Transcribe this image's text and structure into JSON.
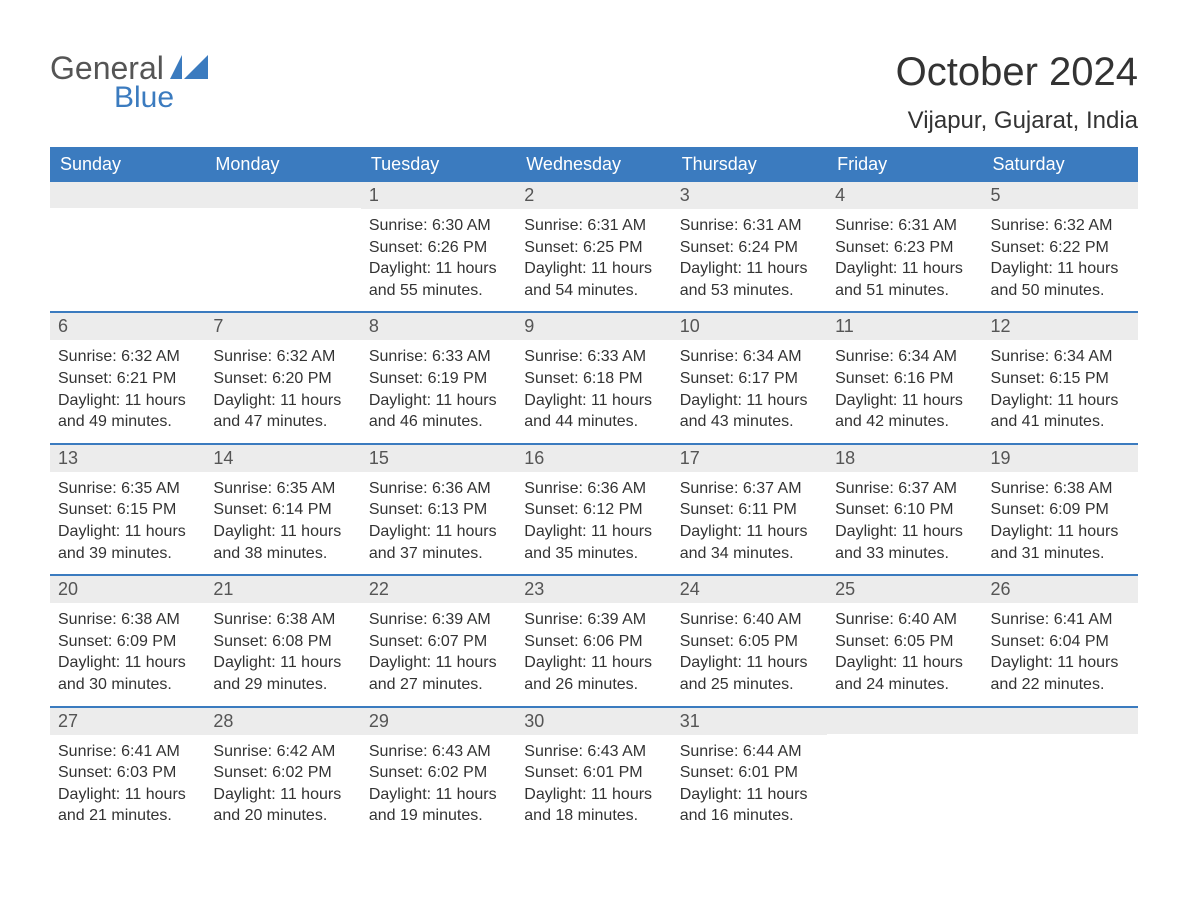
{
  "logo": {
    "text_general": "General",
    "text_blue": "Blue",
    "flag_color": "#3b7bbf"
  },
  "title": "October 2024",
  "location": "Vijapur, Gujarat, India",
  "colors": {
    "header_bg": "#3b7bbf",
    "daynum_bg": "#ececec",
    "text": "#333333",
    "page_bg": "#ffffff"
  },
  "weekdays": [
    "Sunday",
    "Monday",
    "Tuesday",
    "Wednesday",
    "Thursday",
    "Friday",
    "Saturday"
  ],
  "labels": {
    "sunrise": "Sunrise:",
    "sunset": "Sunset:",
    "daylight": "Daylight:"
  },
  "weeks": [
    [
      {
        "day": "",
        "sunrise": "",
        "sunset": "",
        "daylight": ""
      },
      {
        "day": "",
        "sunrise": "",
        "sunset": "",
        "daylight": ""
      },
      {
        "day": "1",
        "sunrise": "6:30 AM",
        "sunset": "6:26 PM",
        "daylight": "11 hours and 55 minutes."
      },
      {
        "day": "2",
        "sunrise": "6:31 AM",
        "sunset": "6:25 PM",
        "daylight": "11 hours and 54 minutes."
      },
      {
        "day": "3",
        "sunrise": "6:31 AM",
        "sunset": "6:24 PM",
        "daylight": "11 hours and 53 minutes."
      },
      {
        "day": "4",
        "sunrise": "6:31 AM",
        "sunset": "6:23 PM",
        "daylight": "11 hours and 51 minutes."
      },
      {
        "day": "5",
        "sunrise": "6:32 AM",
        "sunset": "6:22 PM",
        "daylight": "11 hours and 50 minutes."
      }
    ],
    [
      {
        "day": "6",
        "sunrise": "6:32 AM",
        "sunset": "6:21 PM",
        "daylight": "11 hours and 49 minutes."
      },
      {
        "day": "7",
        "sunrise": "6:32 AM",
        "sunset": "6:20 PM",
        "daylight": "11 hours and 47 minutes."
      },
      {
        "day": "8",
        "sunrise": "6:33 AM",
        "sunset": "6:19 PM",
        "daylight": "11 hours and 46 minutes."
      },
      {
        "day": "9",
        "sunrise": "6:33 AM",
        "sunset": "6:18 PM",
        "daylight": "11 hours and 44 minutes."
      },
      {
        "day": "10",
        "sunrise": "6:34 AM",
        "sunset": "6:17 PM",
        "daylight": "11 hours and 43 minutes."
      },
      {
        "day": "11",
        "sunrise": "6:34 AM",
        "sunset": "6:16 PM",
        "daylight": "11 hours and 42 minutes."
      },
      {
        "day": "12",
        "sunrise": "6:34 AM",
        "sunset": "6:15 PM",
        "daylight": "11 hours and 41 minutes."
      }
    ],
    [
      {
        "day": "13",
        "sunrise": "6:35 AM",
        "sunset": "6:15 PM",
        "daylight": "11 hours and 39 minutes."
      },
      {
        "day": "14",
        "sunrise": "6:35 AM",
        "sunset": "6:14 PM",
        "daylight": "11 hours and 38 minutes."
      },
      {
        "day": "15",
        "sunrise": "6:36 AM",
        "sunset": "6:13 PM",
        "daylight": "11 hours and 37 minutes."
      },
      {
        "day": "16",
        "sunrise": "6:36 AM",
        "sunset": "6:12 PM",
        "daylight": "11 hours and 35 minutes."
      },
      {
        "day": "17",
        "sunrise": "6:37 AM",
        "sunset": "6:11 PM",
        "daylight": "11 hours and 34 minutes."
      },
      {
        "day": "18",
        "sunrise": "6:37 AM",
        "sunset": "6:10 PM",
        "daylight": "11 hours and 33 minutes."
      },
      {
        "day": "19",
        "sunrise": "6:38 AM",
        "sunset": "6:09 PM",
        "daylight": "11 hours and 31 minutes."
      }
    ],
    [
      {
        "day": "20",
        "sunrise": "6:38 AM",
        "sunset": "6:09 PM",
        "daylight": "11 hours and 30 minutes."
      },
      {
        "day": "21",
        "sunrise": "6:38 AM",
        "sunset": "6:08 PM",
        "daylight": "11 hours and 29 minutes."
      },
      {
        "day": "22",
        "sunrise": "6:39 AM",
        "sunset": "6:07 PM",
        "daylight": "11 hours and 27 minutes."
      },
      {
        "day": "23",
        "sunrise": "6:39 AM",
        "sunset": "6:06 PM",
        "daylight": "11 hours and 26 minutes."
      },
      {
        "day": "24",
        "sunrise": "6:40 AM",
        "sunset": "6:05 PM",
        "daylight": "11 hours and 25 minutes."
      },
      {
        "day": "25",
        "sunrise": "6:40 AM",
        "sunset": "6:05 PM",
        "daylight": "11 hours and 24 minutes."
      },
      {
        "day": "26",
        "sunrise": "6:41 AM",
        "sunset": "6:04 PM",
        "daylight": "11 hours and 22 minutes."
      }
    ],
    [
      {
        "day": "27",
        "sunrise": "6:41 AM",
        "sunset": "6:03 PM",
        "daylight": "11 hours and 21 minutes."
      },
      {
        "day": "28",
        "sunrise": "6:42 AM",
        "sunset": "6:02 PM",
        "daylight": "11 hours and 20 minutes."
      },
      {
        "day": "29",
        "sunrise": "6:43 AM",
        "sunset": "6:02 PM",
        "daylight": "11 hours and 19 minutes."
      },
      {
        "day": "30",
        "sunrise": "6:43 AM",
        "sunset": "6:01 PM",
        "daylight": "11 hours and 18 minutes."
      },
      {
        "day": "31",
        "sunrise": "6:44 AM",
        "sunset": "6:01 PM",
        "daylight": "11 hours and 16 minutes."
      },
      {
        "day": "",
        "sunrise": "",
        "sunset": "",
        "daylight": ""
      },
      {
        "day": "",
        "sunrise": "",
        "sunset": "",
        "daylight": ""
      }
    ]
  ]
}
